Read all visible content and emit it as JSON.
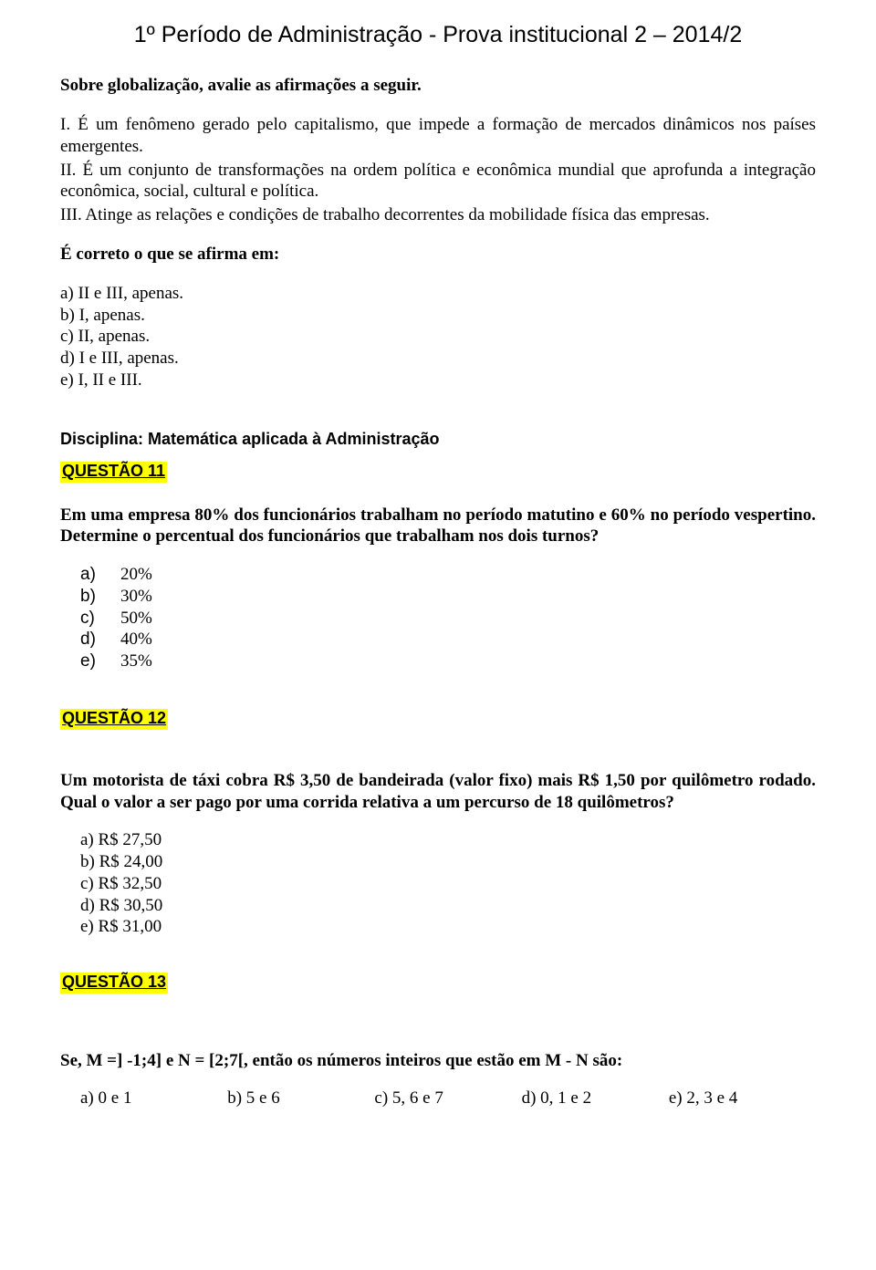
{
  "header": {
    "title": "1º Período de Administração - Prova institucional 2 – 2014/2"
  },
  "q10": {
    "instruction": "Sobre globalização, avalie as afirmações a seguir.",
    "statements": [
      "I. É um fenômeno gerado pelo capitalismo, que impede a formação de mercados dinâmicos nos países emergentes.",
      "II. É um conjunto de transformações na ordem política e econômica mundial que aprofunda a integração econômica, social, cultural e política.",
      "III. Atinge as relações e condições de trabalho decorrentes da mobilidade física das empresas."
    ],
    "correct_prompt": "É correto o que se afirma em:",
    "options": [
      "a) II e III, apenas.",
      "b) I, apenas.",
      "c) II, apenas.",
      "d) I e III, apenas.",
      "e) I, II e III."
    ]
  },
  "discipline": "Disciplina: Matemática aplicada à Administração",
  "q11": {
    "label": "QUESTÃO 11",
    "text": "Em uma empresa 80% dos funcionários trabalham no período matutino e 60% no período vespertino. Determine o percentual dos funcionários que trabalham nos dois turnos?",
    "options": [
      {
        "letter": "a)",
        "value": "20%"
      },
      {
        "letter": "b)",
        "value": "30%"
      },
      {
        "letter": "c)",
        "value": "50%"
      },
      {
        "letter": "d)",
        "value": "40%"
      },
      {
        "letter": "e)",
        "value": "35%"
      }
    ]
  },
  "q12": {
    "label": "QUESTÃO 12",
    "text": "Um motorista de táxi cobra R$ 3,50 de bandeirada (valor fixo) mais R$ 1,50 por quilômetro rodado. Qual o valor a ser pago por uma corrida relativa a um percurso de 18 quilômetros?",
    "options": [
      "a) R$ 27,50",
      "b) R$ 24,00",
      "c) R$ 32,50",
      "d) R$ 30,50",
      "e) R$ 31,00"
    ]
  },
  "q13": {
    "label": "QUESTÃO 13",
    "text": "Se, M =] -1;4] e N = [2;7[, então os números inteiros que estão em M - N são:",
    "options": [
      "a) 0 e 1",
      "b) 5 e 6",
      "c) 5, 6 e 7",
      "d) 0, 1 e 2",
      "e) 2, 3 e 4"
    ]
  },
  "colors": {
    "highlight": "#ffff00",
    "text": "#000000",
    "background": "#ffffff"
  }
}
